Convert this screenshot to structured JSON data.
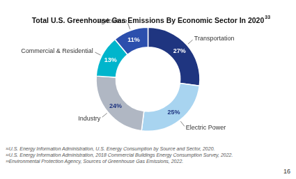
{
  "chart_data": {
    "type": "donut",
    "title": "Total U.S. Greenhouse Gas Emissions By Economic Sector In 2020",
    "title_superscript": "33",
    "categories": [
      "Transportation",
      "Electric Power",
      "Industry",
      "Commercial & Residential",
      "Agriculture"
    ],
    "values": [
      27,
      25,
      24,
      13,
      11
    ],
    "value_labels": [
      "27%",
      "25%",
      "24%",
      "13%",
      "11%"
    ],
    "colors": [
      "#1f3580",
      "#a8d4f0",
      "#b0b7c3",
      "#00b5cc",
      "#2c4fad"
    ],
    "data_labels": true,
    "footnotes": [
      "³¹U.S. Energy Information Administration, U.S. Energy Consumption by Source and Sector, 2020.",
      "³²U.S. Energy Information Administration, 2018 Commercial Buildings Energy Consumption Survey, 2022.",
      "³³Environmental Protection Agency, Sources of Greenhouse Gas Emissions, 2022."
    ],
    "page_number": "16"
  }
}
